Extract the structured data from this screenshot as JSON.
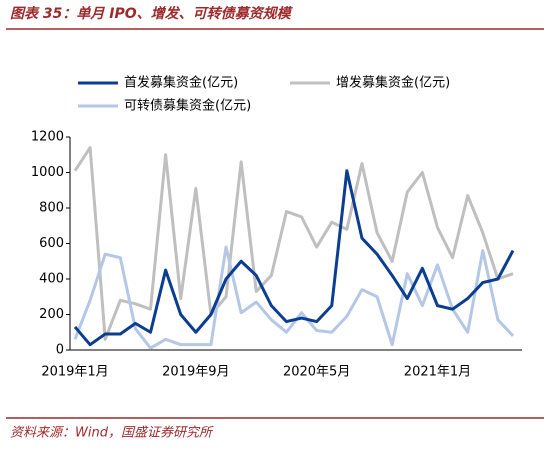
{
  "chart_data": {
    "type": "line",
    "title": "图表 35：单月 IPO、增发、可转债募资规模",
    "source": "资料来源：Wind，国盛证券研究所",
    "categories": [
      "2019年1月",
      null,
      null,
      null,
      null,
      null,
      null,
      null,
      "2019年9月",
      null,
      null,
      null,
      null,
      null,
      null,
      null,
      "2020年5月",
      null,
      null,
      null,
      null,
      null,
      null,
      null,
      "2021年1月",
      null,
      null,
      null,
      null,
      null
    ],
    "series": [
      {
        "name": "首发募集资金(亿元)",
        "color": "#0b3d91",
        "values": [
          130,
          30,
          90,
          90,
          150,
          100,
          450,
          200,
          100,
          200,
          400,
          500,
          420,
          250,
          160,
          180,
          160,
          250,
          1010,
          630,
          540,
          420,
          290,
          460,
          250,
          230,
          290,
          380,
          400,
          560
        ]
      },
      {
        "name": "增发募集资金(亿元)",
        "color": "#bfbfbf",
        "values": [
          1010,
          1140,
          60,
          280,
          260,
          230,
          1100,
          290,
          910,
          200,
          300,
          1060,
          330,
          420,
          780,
          750,
          580,
          720,
          680,
          1050,
          660,
          500,
          890,
          1000,
          690,
          520,
          870,
          660,
          400,
          430
        ]
      },
      {
        "name": "可转债募集资金(亿元)",
        "color": "#b4c7e7",
        "values": [
          60,
          280,
          540,
          520,
          120,
          10,
          60,
          30,
          30,
          30,
          580,
          210,
          270,
          170,
          100,
          210,
          110,
          100,
          190,
          340,
          300,
          30,
          430,
          250,
          480,
          230,
          100,
          560,
          170,
          80
        ]
      }
    ],
    "ylim": [
      0,
      1200
    ],
    "yticks": [
      0,
      200,
      400,
      600,
      800,
      1000,
      1200
    ]
  }
}
